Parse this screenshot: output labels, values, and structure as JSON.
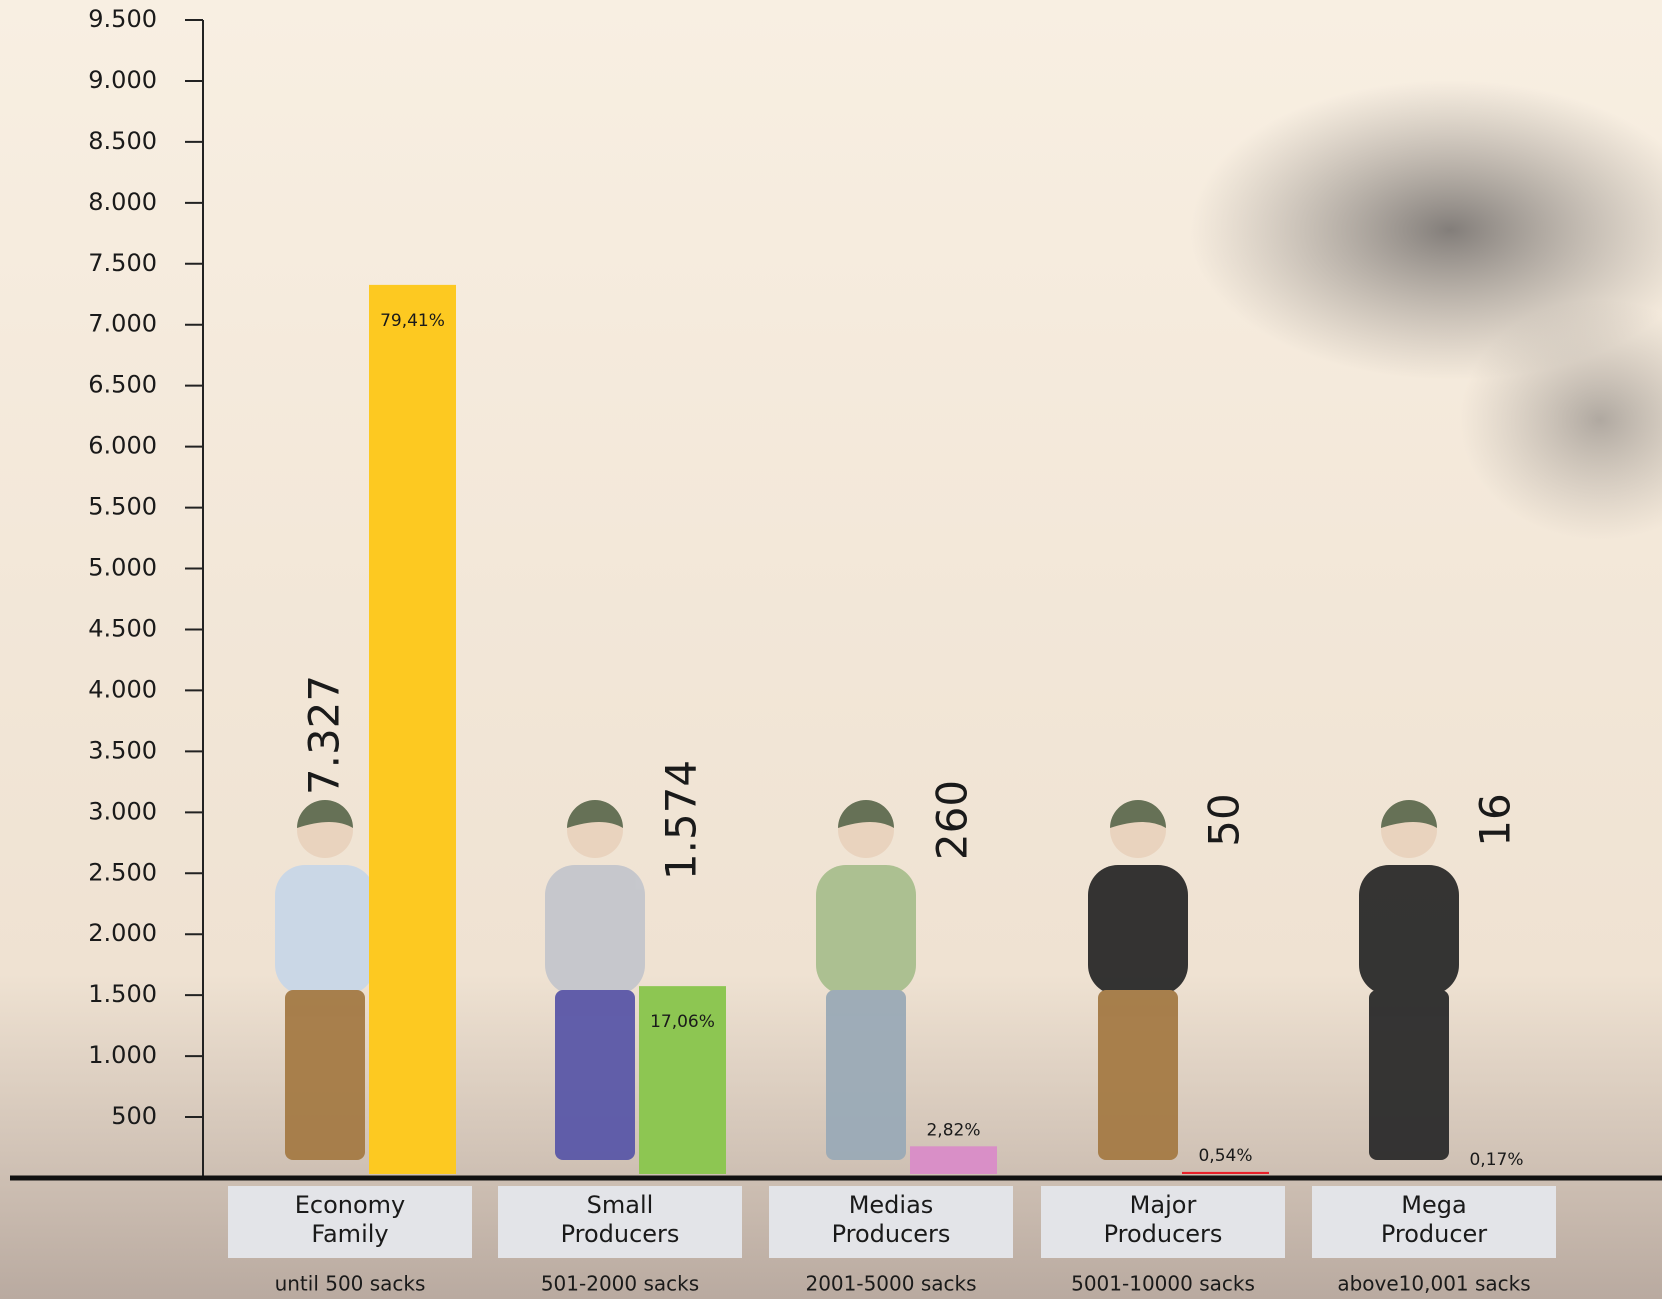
{
  "chart_data": {
    "type": "bar",
    "categories": [
      "Economy Family",
      "Small Producers",
      "Medias Producers",
      "Major Producers",
      "Mega Producer"
    ],
    "subcategories": [
      "until 500 sacks",
      "501-2000 sacks",
      "2001-5000 sacks",
      "5001-10000 sacks",
      "above10,001 sacks"
    ],
    "values": [
      7327,
      1574,
      260,
      50,
      16
    ],
    "value_labels": [
      "7.327",
      "1.574",
      "260",
      "50",
      "16"
    ],
    "percents": [
      79.41,
      17.06,
      2.82,
      0.54,
      0.17
    ],
    "percent_labels": [
      "79,41%",
      "17,06%",
      "2,82%",
      "0,54%",
      "0,17%"
    ],
    "colors": [
      "#fdc921",
      "#8dc652",
      "#d98fc7",
      "#e8202a",
      "#3d3f9a"
    ],
    "ylim": [
      0,
      9500
    ],
    "yticks": [
      500,
      {
        "value": 1000,
        "label": "1.000"
      },
      {
        "value": 1500,
        "label": "1.500"
      },
      {
        "value": 2000,
        "label": "2.000"
      },
      {
        "value": 2500,
        "label": "2.500"
      },
      {
        "value": 3000,
        "label": "3.000"
      },
      {
        "value": 3500,
        "label": "3.500"
      },
      {
        "value": 4000,
        "label": "4.000"
      },
      {
        "value": 4500,
        "label": "4.500"
      },
      {
        "value": 5000,
        "label": "5.000"
      },
      {
        "value": 5500,
        "label": "5.500"
      },
      {
        "value": 6000,
        "label": "6.000"
      },
      {
        "value": 6500,
        "label": "6.500"
      },
      {
        "value": 7000,
        "label": "7.000"
      },
      {
        "value": 7500,
        "label": "7.500"
      },
      {
        "value": 8000,
        "label": "8.000"
      },
      {
        "value": 8500,
        "label": "8.500"
      },
      {
        "value": 9000,
        "label": "9.000"
      },
      {
        "value": 9500,
        "label": "9.500"
      }
    ]
  }
}
